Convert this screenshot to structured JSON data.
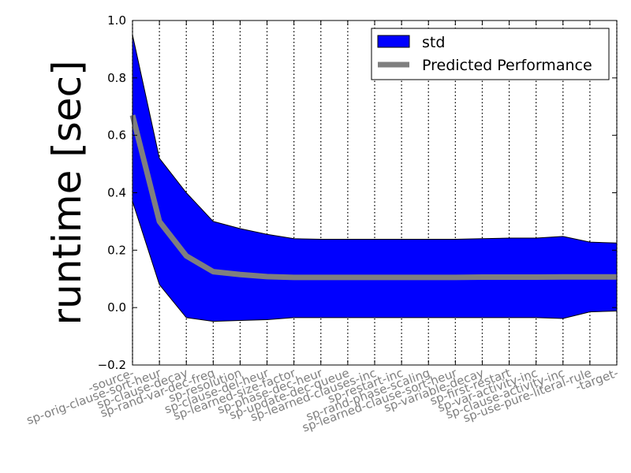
{
  "chart_data": {
    "type": "line",
    "xlabel": "",
    "ylabel": "runtime [sec]",
    "ylim": [
      -0.2,
      1.0
    ],
    "yticks": [
      -0.2,
      0.0,
      0.2,
      0.4,
      0.6,
      0.8,
      1.0
    ],
    "ytick_labels": [
      "−0.2",
      "0.0",
      "0.2",
      "0.4",
      "0.6",
      "0.8",
      "1.0"
    ],
    "grid": "vertical dotted lines at each category",
    "legend_position": "top-right",
    "categories": [
      "-source-",
      "sp-orig-clause-sort-heur",
      "sp-clause-decay",
      "sp-rand-var-dec-freq",
      "sp-resolution",
      "sp-clause-del-heur",
      "sp-learned-size-factor",
      "sp-phase-dec-heur",
      "sp-update-dec-queue",
      "sp-learned-clauses-inc",
      "sp-restart-inc",
      "sp-rand-phase-scaling",
      "sp-learned-clause-sort-heur",
      "sp-variable-decay",
      "sp-first-restart",
      "sp-var-activity-inc",
      "sp-clause-activity-inc",
      "sp-use-pure-literal-rule",
      "-target-"
    ],
    "series": [
      {
        "name": "Predicted Performance",
        "kind": "line",
        "color": "#7f7f7f",
        "values": [
          0.67,
          0.3,
          0.18,
          0.125,
          0.115,
          0.108,
          0.105,
          0.105,
          0.105,
          0.105,
          0.105,
          0.105,
          0.105,
          0.106,
          0.106,
          0.106,
          0.107,
          0.107,
          0.107
        ]
      },
      {
        "name": "std",
        "kind": "band",
        "color": "#0000ff",
        "upper": [
          0.95,
          0.52,
          0.4,
          0.3,
          0.275,
          0.255,
          0.24,
          0.238,
          0.238,
          0.238,
          0.238,
          0.238,
          0.238,
          0.24,
          0.242,
          0.242,
          0.248,
          0.228,
          0.225
        ],
        "lower": [
          0.37,
          0.08,
          -0.035,
          -0.048,
          -0.045,
          -0.042,
          -0.035,
          -0.035,
          -0.035,
          -0.035,
          -0.035,
          -0.035,
          -0.035,
          -0.035,
          -0.035,
          -0.035,
          -0.038,
          -0.015,
          -0.012
        ]
      }
    ],
    "legend": [
      {
        "label": "std",
        "kind": "patch",
        "color": "#0000ff"
      },
      {
        "label": "Predicted Performance",
        "kind": "line",
        "color": "#7f7f7f"
      }
    ]
  }
}
